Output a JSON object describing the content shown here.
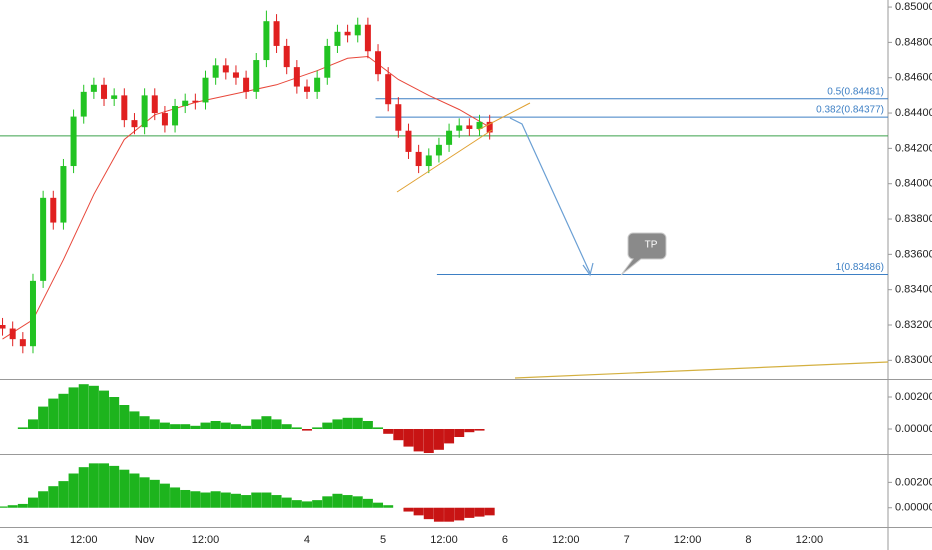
{
  "chart_data": [
    {
      "type": "candlestick",
      "x": [
        -4,
        -2,
        0,
        2,
        4,
        6,
        8,
        10,
        12,
        14,
        16,
        18,
        20,
        22,
        24,
        26,
        28,
        30,
        32,
        34,
        36,
        38,
        40,
        42,
        44,
        46,
        48,
        50,
        52,
        54,
        56,
        58,
        60,
        62,
        64,
        66,
        68,
        70,
        72,
        74,
        76,
        78,
        80,
        82,
        84,
        86,
        88,
        90,
        92
      ],
      "open": [
        0.832,
        0.8318,
        0.8312,
        0.8308,
        0.8345,
        0.8392,
        0.8378,
        0.841,
        0.8438,
        0.8452,
        0.8456,
        0.8448,
        0.845,
        0.8436,
        0.8432,
        0.845,
        0.844,
        0.8433,
        0.8444,
        0.8447,
        0.8446,
        0.846,
        0.8467,
        0.8463,
        0.846,
        0.8452,
        0.847,
        0.8492,
        0.8478,
        0.8466,
        0.8455,
        0.8452,
        0.846,
        0.8478,
        0.8486,
        0.8484,
        0.849,
        0.8475,
        0.8462,
        0.8445,
        0.843,
        0.8418,
        0.841,
        0.8416,
        0.8422,
        0.843,
        0.8433,
        0.8431,
        0.8435
      ],
      "high": [
        0.8324,
        0.8322,
        0.8316,
        0.8349,
        0.8396,
        0.8396,
        0.8414,
        0.8442,
        0.8456,
        0.846,
        0.846,
        0.8454,
        0.8454,
        0.844,
        0.8454,
        0.8454,
        0.8444,
        0.8448,
        0.8451,
        0.8451,
        0.8464,
        0.8471,
        0.8471,
        0.8467,
        0.8464,
        0.8474,
        0.8498,
        0.8496,
        0.8482,
        0.847,
        0.8459,
        0.8464,
        0.8482,
        0.849,
        0.849,
        0.8494,
        0.8494,
        0.8479,
        0.8466,
        0.8449,
        0.8434,
        0.8422,
        0.842,
        0.8426,
        0.8434,
        0.8437,
        0.8437,
        0.8439,
        0.8439
      ],
      "low": [
        0.8314,
        0.8308,
        0.8304,
        0.8304,
        0.8341,
        0.8374,
        0.8374,
        0.8406,
        0.8434,
        0.8448,
        0.8444,
        0.8444,
        0.8432,
        0.8428,
        0.8428,
        0.8436,
        0.8429,
        0.8429,
        0.844,
        0.8442,
        0.8442,
        0.8456,
        0.8459,
        0.8456,
        0.8448,
        0.8448,
        0.8466,
        0.8474,
        0.8462,
        0.8451,
        0.8448,
        0.8448,
        0.8456,
        0.8474,
        0.848,
        0.848,
        0.8471,
        0.8458,
        0.8441,
        0.8426,
        0.8414,
        0.8406,
        0.8406,
        0.8412,
        0.8418,
        0.8426,
        0.8427,
        0.8427,
        0.8425
      ],
      "close": [
        0.8318,
        0.8312,
        0.8308,
        0.8345,
        0.8392,
        0.8378,
        0.841,
        0.8438,
        0.8452,
        0.8456,
        0.8448,
        0.845,
        0.8436,
        0.8432,
        0.845,
        0.844,
        0.8433,
        0.8444,
        0.8447,
        0.8446,
        0.846,
        0.8467,
        0.8463,
        0.846,
        0.8452,
        0.847,
        0.8492,
        0.8478,
        0.8466,
        0.8455,
        0.8452,
        0.846,
        0.8478,
        0.8486,
        0.8484,
        0.849,
        0.8475,
        0.8462,
        0.8445,
        0.843,
        0.8418,
        0.841,
        0.8416,
        0.8422,
        0.843,
        0.8433,
        0.8431,
        0.8435,
        0.8429
      ],
      "up_color": "#22c322",
      "down_color": "#e02020",
      "ma": {
        "color": "#e8473a",
        "x": [
          -4,
          2,
          8,
          14,
          20,
          26,
          34,
          42,
          50,
          58,
          64,
          68,
          74,
          80,
          86,
          92
        ],
        "values": [
          0.8312,
          0.8323,
          0.8357,
          0.8394,
          0.8425,
          0.8439,
          0.8446,
          0.8451,
          0.8456,
          0.8464,
          0.8471,
          0.8472,
          0.8459,
          0.845,
          0.8442,
          0.8432
        ]
      },
      "xlim": [
        -4.5,
        170.5
      ],
      "xticks": [
        {
          "value": 0,
          "label": "31"
        },
        {
          "value": 12,
          "label": "12:00"
        },
        {
          "value": 24,
          "label": "Nov"
        },
        {
          "value": 36,
          "label": "12:00"
        },
        {
          "value": 56,
          "label": "4"
        },
        {
          "value": 71,
          "label": "5"
        },
        {
          "value": 83,
          "label": "12:00"
        },
        {
          "value": 95,
          "label": "6"
        },
        {
          "value": 107,
          "label": "12:00"
        },
        {
          "value": 119,
          "label": "7"
        },
        {
          "value": 131,
          "label": "12:00"
        },
        {
          "value": 143,
          "label": "8"
        },
        {
          "value": 155,
          "label": "12:00"
        }
      ],
      "ylim": [
        0.829,
        0.8504
      ],
      "yticks": [
        {
          "value": 0.85,
          "label": "0.85000"
        },
        {
          "value": 0.848,
          "label": "0.84800"
        },
        {
          "value": 0.846,
          "label": "0.84600"
        },
        {
          "value": 0.844,
          "label": "0.84400"
        },
        {
          "value": 0.842,
          "label": "0.84200"
        },
        {
          "value": 0.84,
          "label": "0.84000"
        },
        {
          "value": 0.838,
          "label": "0.83800"
        },
        {
          "value": 0.836,
          "label": "0.83600"
        },
        {
          "value": 0.834,
          "label": "0.83400"
        },
        {
          "value": 0.832,
          "label": "0.83200"
        },
        {
          "value": 0.83,
          "label": "0.83000"
        }
      ],
      "hline": {
        "value": 0.84271,
        "color": "#3aa14a"
      },
      "levels": [
        {
          "label": "0.5(0.84481)",
          "value": 0.84481,
          "x_start": 69.5
        },
        {
          "label": "0.382(0.84377)",
          "value": 0.84377,
          "x_start": 69.5
        },
        {
          "label": "1(0.83486)",
          "value": 0.83486,
          "x_start": 81.6
        }
      ],
      "level_color": "#3d7fc4",
      "annotation": "TP"
    },
    {
      "type": "bar",
      "x": [
        -4,
        -2,
        0,
        2,
        4,
        6,
        8,
        10,
        12,
        14,
        16,
        18,
        20,
        22,
        24,
        26,
        28,
        30,
        32,
        34,
        36,
        38,
        40,
        42,
        44,
        46,
        48,
        50,
        52,
        54,
        56,
        58,
        60,
        62,
        64,
        66,
        68,
        70,
        72,
        74,
        76,
        78,
        80,
        82,
        84,
        86,
        88,
        90,
        92
      ],
      "values": [
        0,
        0,
        0.0001,
        0.0006,
        0.0014,
        0.0019,
        0.0022,
        0.0026,
        0.0028,
        0.0027,
        0.0024,
        0.002,
        0.0015,
        0.0011,
        0.0008,
        0.0006,
        0.0004,
        0.0003,
        0.0003,
        0.0002,
        0.0004,
        0.0005,
        0.0004,
        0.0003,
        0.0002,
        0.0006,
        0.0008,
        0.0006,
        0.0003,
        0.0001,
        -0.0001,
        0.0001,
        0.0004,
        0.0006,
        0.0007,
        0.0007,
        0.0005,
        0.0001,
        -0.0003,
        -0.0007,
        -0.0011,
        -0.0014,
        -0.0015,
        -0.0013,
        -0.0009,
        -0.0005,
        -0.0002,
        -0.0001,
        0
      ],
      "up_color": "#1db41d",
      "down_color": "#c81414",
      "ylim": [
        -0.0015,
        0.003
      ],
      "yticks": [
        {
          "value": 0.002,
          "label": "0.00200"
        },
        {
          "value": 0,
          "label": "0.00000"
        }
      ]
    },
    {
      "type": "bar",
      "x": [
        -4,
        -2,
        0,
        2,
        4,
        6,
        8,
        10,
        12,
        14,
        16,
        18,
        20,
        22,
        24,
        26,
        28,
        30,
        32,
        34,
        36,
        38,
        40,
        42,
        44,
        46,
        48,
        50,
        52,
        54,
        56,
        58,
        60,
        62,
        64,
        66,
        68,
        70,
        72,
        74,
        76,
        78,
        80,
        82,
        84,
        86,
        88,
        90,
        92
      ],
      "values": [
        0.0001,
        0.0002,
        0.0003,
        0.0008,
        0.0013,
        0.0017,
        0.0021,
        0.0027,
        0.0032,
        0.0035,
        0.0035,
        0.0033,
        0.003,
        0.0027,
        0.0024,
        0.0022,
        0.0019,
        0.0016,
        0.0014,
        0.0013,
        0.0012,
        0.0013,
        0.0012,
        0.0011,
        0.001,
        0.0012,
        0.0012,
        0.001,
        0.0008,
        0.0006,
        0.0005,
        0.0006,
        0.0009,
        0.0011,
        0.001,
        0.0009,
        0.0007,
        0.0004,
        0.0002,
        0,
        -0.0003,
        -0.0006,
        -0.0009,
        -0.0011,
        -0.0011,
        -0.001,
        -0.0008,
        -0.0007,
        -0.0006
      ],
      "up_color": "#1db41d",
      "down_color": "#c81414",
      "ylim": [
        -0.00144,
        0.00408
      ],
      "yticks": [
        {
          "value": 0.002,
          "label": "0.00200"
        },
        {
          "value": 0,
          "label": "0.00000"
        }
      ]
    }
  ]
}
